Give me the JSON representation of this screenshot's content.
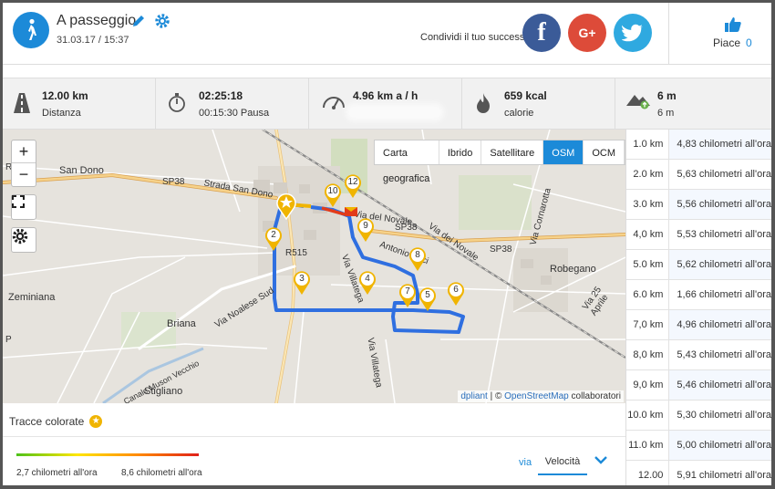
{
  "activity": {
    "title": "A passeggio",
    "date": "31.03.17 / 15:37"
  },
  "share": {
    "text": "Condividi il tuo successo",
    "fb": "f",
    "gp": "G+"
  },
  "like": {
    "label": "Piace",
    "count": "0"
  },
  "stats": {
    "distance": {
      "value": "12.00 km",
      "label": "Distanza"
    },
    "time": {
      "value": "02:25:18",
      "label": "00:15:30 Pausa"
    },
    "speed": {
      "value": "4.96 km a / h"
    },
    "calories": {
      "value": "659 kcal",
      "label": "calorie"
    },
    "elevation": {
      "value": "6 m",
      "label": "6 m"
    }
  },
  "map": {
    "controls": {
      "zoom_in": "+",
      "zoom_out": "−"
    },
    "layers": [
      "Carta geografica",
      "Ibrido",
      "Satellitare",
      "OSM",
      "OCM"
    ],
    "active_layer": "OSM",
    "attribution_a": "dpliant",
    "attribution_sep": " | © ",
    "attribution_b": "OpenStreetMap",
    "attribution_c": " collaboratori",
    "towns": {
      "sandono": "San Dono",
      "robegano": "Robegano",
      "zeminiana": "Zeminiana",
      "briana": "Briana",
      "stigliano": "Stigliano"
    },
    "roads": {
      "sp38a": "SP38",
      "sp38b": "SP38",
      "sp38c": "SP38",
      "sr515": "R515",
      "strada": "Strada San Dono",
      "noalese": "Via Noalese Sud",
      "novale": "Via del Novale",
      "novale2": "Via dei Novale",
      "villatega": "Via Villatega",
      "villatega2": "Via Villatega",
      "cornarotta": "Via Cornarotta",
      "aprile": "Via 25 Aprile",
      "pacin": "Antonio Paci",
      "muson": "Canale Muson Vecchio",
      "r": "R",
      "p": "P"
    },
    "markers": [
      "2",
      "3",
      "4",
      "5",
      "6",
      "7",
      "8",
      "9",
      "10",
      "12"
    ]
  },
  "km_splits": [
    {
      "km": "1.0 km",
      "speed": "4,83 chilometri all'ora"
    },
    {
      "km": "2.0 km",
      "speed": "5,63 chilometri all'ora"
    },
    {
      "km": "3.0 km",
      "speed": "5,56 chilometri all'ora"
    },
    {
      "km": "4,0 km",
      "speed": "5,53 chilometri all'ora"
    },
    {
      "km": "5.0 km",
      "speed": "5,62 chilometri all'ora"
    },
    {
      "km": "6.0 km",
      "speed": "1,66 chilometri all'ora"
    },
    {
      "km": "7,0 km",
      "speed": "4,96 chilometri all'ora"
    },
    {
      "km": "8,0 km",
      "speed": "5,43 chilometri all'ora"
    },
    {
      "km": "9,0 km",
      "speed": "5,46 chilometri all'ora"
    },
    {
      "km": "10.0 km",
      "speed": "5,30 chilometri all'ora"
    },
    {
      "km": "11.0 km",
      "speed": "5,00 chilometri all'ora"
    },
    {
      "km": "12.00 km",
      "speed": "5,91 chilometri all'ora"
    }
  ],
  "tracks": {
    "label": "Tracce colorate",
    "star": "★",
    "min": "2,7 chilometri all'ora",
    "max": "8,6 chilometri all'ora",
    "via": "via",
    "metric": "Velocità"
  },
  "colors": {
    "accent": "#1c8ad8",
    "track": "#2f6fe0",
    "marker": "#f0b400"
  }
}
